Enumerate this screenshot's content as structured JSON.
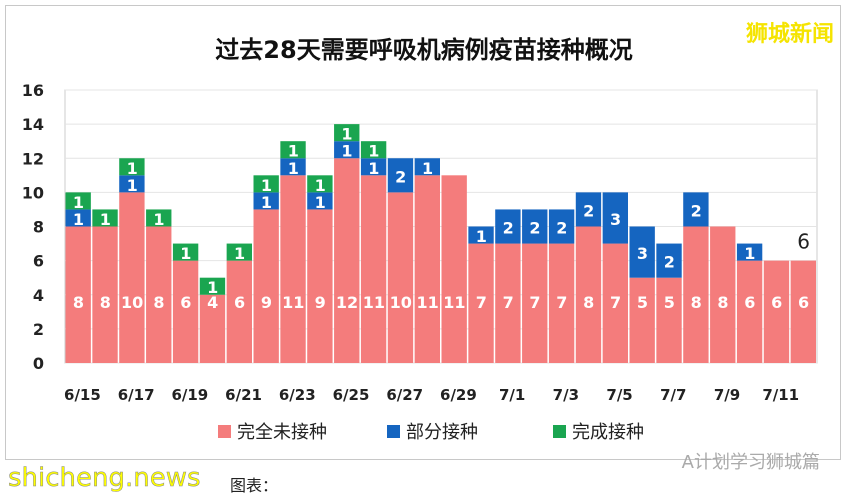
{
  "brand": "狮城新闻",
  "watermark": "shicheng.news",
  "caption": "图表：",
  "wechat": "A计划学习狮城篇",
  "colors": {
    "unvaccinated": "#f47c7c",
    "partial": "#1565c0",
    "full": "#1aa550"
  },
  "chart_data": {
    "type": "bar",
    "stacked": true,
    "title": "过去28天需要呼吸机病例疫苗接种概况",
    "categories": [
      "6/15",
      "6/16",
      "6/17",
      "6/18",
      "6/19",
      "6/20",
      "6/21",
      "6/22",
      "6/23",
      "6/24",
      "6/25",
      "6/26",
      "6/27",
      "6/28",
      "6/29",
      "6/30",
      "7/1",
      "7/2",
      "7/3",
      "7/4",
      "7/5",
      "7/6",
      "7/7",
      "7/8",
      "7/9",
      "7/10",
      "7/11",
      "7/12"
    ],
    "tick_labels": [
      "6/15",
      "6/17",
      "6/19",
      "6/21",
      "6/23",
      "6/25",
      "6/27",
      "6/29",
      "7/1",
      "7/3",
      "7/5",
      "7/7",
      "7/9",
      "7/11"
    ],
    "series": [
      {
        "name": "完全未接种",
        "values": [
          8,
          8,
          10,
          8,
          6,
          4,
          6,
          9,
          11,
          9,
          12,
          11,
          10,
          11,
          11,
          7,
          7,
          7,
          7,
          8,
          7,
          5,
          5,
          8,
          8,
          6,
          6,
          6
        ]
      },
      {
        "name": "部分接种",
        "values": [
          1,
          0,
          1,
          0,
          0,
          0,
          0,
          1,
          1,
          1,
          1,
          1,
          2,
          1,
          0,
          1,
          2,
          2,
          2,
          2,
          3,
          3,
          2,
          2,
          0,
          1,
          0,
          0
        ]
      },
      {
        "name": "完成接种",
        "values": [
          1,
          1,
          1,
          1,
          1,
          1,
          1,
          1,
          1,
          1,
          1,
          1,
          0,
          0,
          0,
          0,
          0,
          0,
          0,
          0,
          0,
          0,
          0,
          0,
          0,
          0,
          0,
          0
        ]
      }
    ],
    "annotation": "6",
    "ylim": [
      0,
      16
    ],
    "yticks": [
      0,
      2,
      4,
      6,
      8,
      10,
      12,
      14,
      16
    ],
    "grid": true,
    "legend": "bottom"
  }
}
